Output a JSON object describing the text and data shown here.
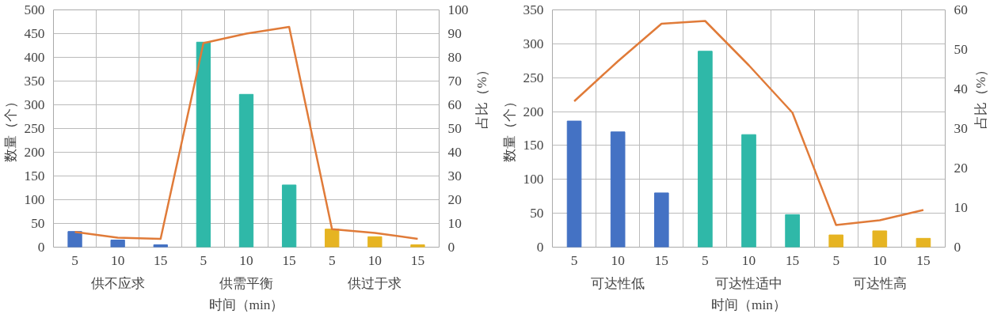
{
  "chart_data": [
    {
      "type": "bar",
      "categories": [
        "5",
        "10",
        "15",
        "5",
        "10",
        "15",
        "5",
        "10",
        "15"
      ],
      "xlabel": "时间（min）",
      "ylabel": "数量（个）",
      "y2label": "占比（%）",
      "annotations": [
        "供不应求",
        "供需平衡",
        "供过于求"
      ],
      "series": [
        {
          "colors": [
            "#4472c4",
            "#4472c4",
            "#4472c4",
            "#2fb8a8",
            "#2fb8a8",
            "#2fb8a8",
            "#e6b422",
            "#e6b422",
            "#e6b422"
          ],
          "values": [
            33,
            15,
            5,
            432,
            322,
            131,
            38,
            22,
            5
          ]
        },
        {
          "type": "line",
          "axis": "y2",
          "color": "#e07b39",
          "values": [
            6.4,
            4,
            3.5,
            86,
            90,
            92.8,
            7.6,
            6,
            3.5
          ]
        }
      ],
      "ylim": [
        0,
        500
      ],
      "yticks": [
        0,
        50,
        100,
        150,
        200,
        250,
        300,
        350,
        400,
        450,
        500
      ],
      "y2lim": [
        0,
        100
      ],
      "y2ticks": [
        0,
        10,
        20,
        30,
        40,
        50,
        60,
        70,
        80,
        90,
        100
      ],
      "grid": true
    },
    {
      "type": "bar",
      "categories": [
        "5",
        "10",
        "15",
        "5",
        "10",
        "15",
        "5",
        "10",
        "15"
      ],
      "xlabel": "时间（min）",
      "ylabel": "数量（个）",
      "y2label": "占比（%）",
      "annotations": [
        "可达性低",
        "可达性适中",
        "可达性高"
      ],
      "series": [
        {
          "colors": [
            "#4472c4",
            "#4472c4",
            "#4472c4",
            "#2fb8a8",
            "#2fb8a8",
            "#2fb8a8",
            "#e6b422",
            "#e6b422",
            "#e6b422"
          ],
          "values": [
            186,
            170,
            80,
            289,
            166,
            48,
            18,
            24,
            13
          ]
        },
        {
          "type": "line",
          "axis": "y2",
          "color": "#e07b39",
          "values": [
            36.9,
            47,
            56.5,
            57.2,
            46,
            34,
            5.6,
            6.8,
            9.4
          ]
        }
      ],
      "ylim": [
        0,
        350
      ],
      "yticks": [
        0,
        50,
        100,
        150,
        200,
        250,
        300,
        350
      ],
      "y2lim": [
        0,
        60
      ],
      "y2ticks": [
        0,
        10,
        20,
        30,
        40,
        50,
        60
      ],
      "grid": true
    }
  ]
}
